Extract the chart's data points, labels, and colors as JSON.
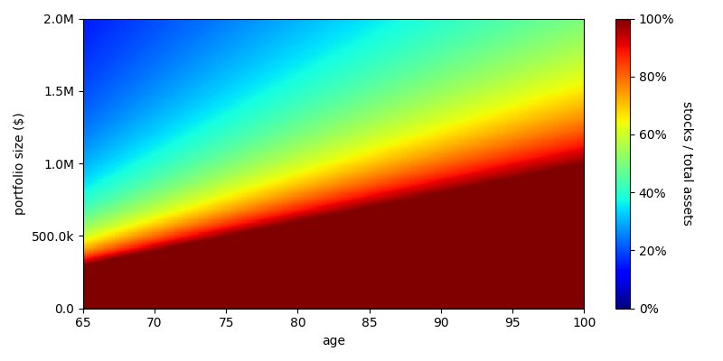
{
  "age_min": 65,
  "age_max": 100,
  "age_steps": 200,
  "portfolio_min": 0,
  "portfolio_max": 2000000,
  "portfolio_steps": 300,
  "fixed_stock_base": 500000,
  "xlabel": "age",
  "ylabel": "portfolio size ($)",
  "colorbar_label": "stocks / total assets",
  "colorbar_ticks": [
    0.0,
    0.2,
    0.4,
    0.6,
    0.8,
    1.0
  ],
  "colorbar_ticklabels": [
    "0%",
    "20%",
    "40%",
    "60%",
    "80%",
    "100%"
  ],
  "ytick_values": [
    0,
    500000,
    1000000,
    1500000,
    2000000
  ],
  "ytick_labels": [
    "0.0",
    "500.0k",
    "1.0M",
    "1.5M",
    "2.0M"
  ],
  "xtick_values": [
    65,
    70,
    75,
    80,
    85,
    90,
    95,
    100
  ],
  "background": "#ffffff",
  "figsize": [
    8.0,
    4.0
  ],
  "dpi": 100
}
